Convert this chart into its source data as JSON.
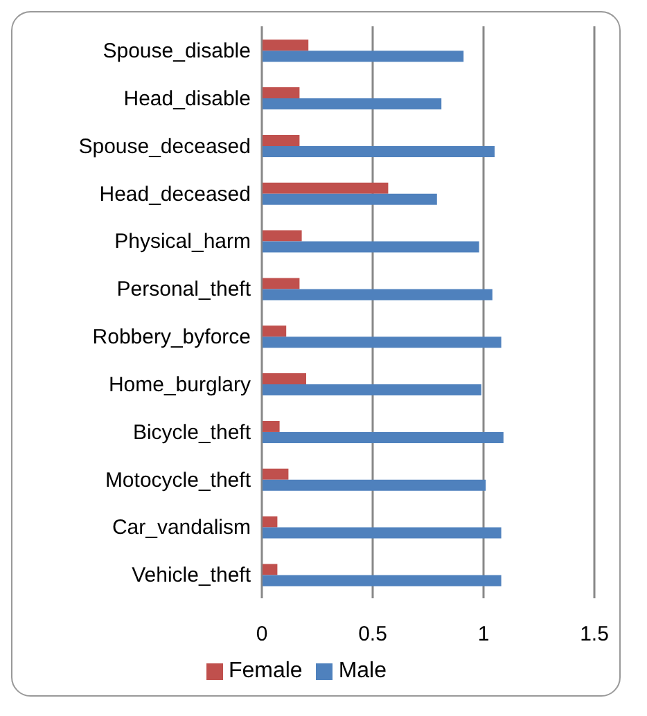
{
  "chart_data": {
    "type": "bar",
    "orientation": "horizontal",
    "categories": [
      "Spouse_disable",
      "Head_disable",
      "Spouse_deceased",
      "Head_deceased",
      "Physical_harm",
      "Personal_theft",
      "Robbery_byforce",
      "Home_burglary",
      "Bicycle_theft",
      "Motocycle_theft",
      "Car_vandalism",
      "Vehicle_theft"
    ],
    "series": [
      {
        "name": "Female",
        "color": "#c0504d",
        "values": [
          0.21,
          0.17,
          0.17,
          0.57,
          0.18,
          0.17,
          0.11,
          0.2,
          0.08,
          0.12,
          0.07,
          0.07
        ]
      },
      {
        "name": "Male",
        "color": "#4f81bd",
        "values": [
          0.91,
          0.81,
          1.05,
          0.79,
          0.98,
          1.04,
          1.08,
          0.99,
          1.09,
          1.01,
          1.08,
          1.08
        ]
      }
    ],
    "xlim": [
      0,
      1.5
    ],
    "xticks": [
      0,
      0.5,
      1,
      1.5
    ],
    "grid": "x",
    "legend": "bottom"
  }
}
